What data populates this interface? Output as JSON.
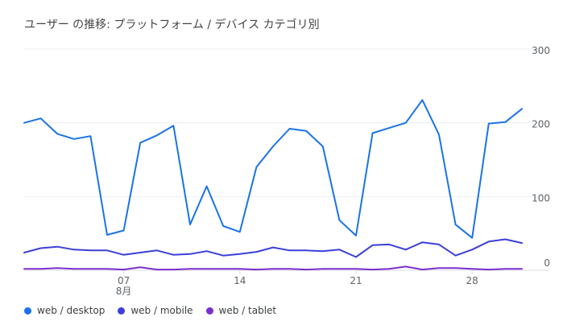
{
  "title": "ユーザー の推移: プラットフォーム / デバイス カテゴリ別",
  "legend": [
    {
      "label": "web / desktop",
      "color": "#1a73e8"
    },
    {
      "label": "web / mobile",
      "color": "#3c3fd9"
    },
    {
      "label": "web / tablet",
      "color": "#7b2fd0"
    }
  ],
  "chart_data": {
    "type": "line",
    "ylim": [
      0,
      300
    ],
    "y_ticks": [
      0,
      100,
      200,
      300
    ],
    "x_ticks": [
      {
        "day": 7,
        "label": "07",
        "sublabel": "8月"
      },
      {
        "day": 14,
        "label": "14"
      },
      {
        "day": 21,
        "label": "21"
      },
      {
        "day": 28,
        "label": "28"
      }
    ],
    "x": [
      1,
      2,
      3,
      4,
      5,
      6,
      7,
      8,
      9,
      10,
      11,
      12,
      13,
      14,
      15,
      16,
      17,
      18,
      19,
      20,
      21,
      22,
      23,
      24,
      25,
      26,
      27,
      28,
      29,
      30,
      31
    ],
    "series": [
      {
        "name": "web / desktop",
        "color": "#1a73e8",
        "values": [
          200,
          206,
          185,
          178,
          182,
          48,
          54,
          173,
          183,
          196,
          62,
          114,
          60,
          52,
          140,
          168,
          192,
          189,
          168,
          68,
          47,
          186,
          193,
          200,
          231,
          184,
          62,
          44,
          199,
          201,
          219
        ]
      },
      {
        "name": "web / mobile",
        "color": "#3c3fd9",
        "values": [
          24,
          30,
          32,
          28,
          27,
          27,
          21,
          24,
          27,
          21,
          22,
          26,
          20,
          22,
          25,
          31,
          27,
          27,
          26,
          28,
          18,
          34,
          35,
          28,
          38,
          35,
          20,
          28,
          39,
          42,
          37
        ]
      },
      {
        "name": "web / tablet",
        "color": "#7b2fd0",
        "values": [
          2,
          2,
          3,
          2,
          2,
          2,
          1,
          4,
          1,
          1,
          2,
          2,
          2,
          2,
          1,
          2,
          2,
          1,
          2,
          2,
          2,
          1,
          2,
          5,
          1,
          3,
          3,
          2,
          1,
          2,
          2
        ]
      }
    ]
  }
}
